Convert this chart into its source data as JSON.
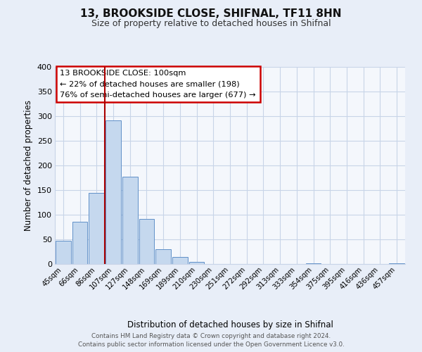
{
  "title": "13, BROOKSIDE CLOSE, SHIFNAL, TF11 8HN",
  "subtitle": "Size of property relative to detached houses in Shifnal",
  "xlabel": "Distribution of detached houses by size in Shifnal",
  "ylabel": "Number of detached properties",
  "bar_labels": [
    "45sqm",
    "66sqm",
    "86sqm",
    "107sqm",
    "127sqm",
    "148sqm",
    "169sqm",
    "189sqm",
    "210sqm",
    "230sqm",
    "251sqm",
    "272sqm",
    "292sqm",
    "313sqm",
    "333sqm",
    "354sqm",
    "375sqm",
    "395sqm",
    "416sqm",
    "436sqm",
    "457sqm"
  ],
  "bar_values": [
    47,
    86,
    144,
    292,
    177,
    92,
    30,
    14,
    5,
    0,
    0,
    0,
    0,
    0,
    0,
    2,
    0,
    0,
    0,
    0,
    2
  ],
  "bar_color": "#c5d8ee",
  "bar_edge_color": "#6090c8",
  "grid_color": "#c8d4e8",
  "background_color": "#e8eef8",
  "plot_background": "#f4f7fc",
  "vline_color": "#aa0000",
  "annotation_title": "13 BROOKSIDE CLOSE: 100sqm",
  "annotation_line1": "← 22% of detached houses are smaller (198)",
  "annotation_line2": "76% of semi-detached houses are larger (677) →",
  "annotation_box_color": "#ffffff",
  "annotation_box_edge": "#cc0000",
  "ylim": [
    0,
    400
  ],
  "yticks": [
    0,
    50,
    100,
    150,
    200,
    250,
    300,
    350,
    400
  ],
  "footer1": "Contains HM Land Registry data © Crown copyright and database right 2024.",
  "footer2": "Contains public sector information licensed under the Open Government Licence v3.0."
}
